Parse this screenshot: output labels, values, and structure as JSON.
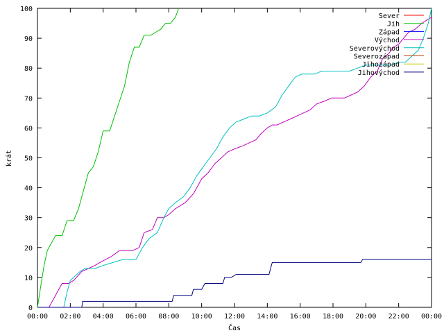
{
  "chart_data": {
    "type": "line",
    "title": "",
    "xlabel": "Čas",
    "ylabel": "krát",
    "xlim": [
      0,
      24
    ],
    "ylim": [
      0,
      100
    ],
    "x_ticks": [
      {
        "value": 0,
        "label": "00:00"
      },
      {
        "value": 2,
        "label": "02:00"
      },
      {
        "value": 4,
        "label": "04:00"
      },
      {
        "value": 6,
        "label": "06:00"
      },
      {
        "value": 8,
        "label": "08:00"
      },
      {
        "value": 10,
        "label": "10:00"
      },
      {
        "value": 12,
        "label": "12:00"
      },
      {
        "value": 14,
        "label": "14:00"
      },
      {
        "value": 16,
        "label": "16:00"
      },
      {
        "value": 18,
        "label": "18:00"
      },
      {
        "value": 20,
        "label": "20:00"
      },
      {
        "value": 22,
        "label": "22:00"
      },
      {
        "value": 24,
        "label": "00:00"
      }
    ],
    "y_ticks": [
      0,
      10,
      20,
      30,
      40,
      50,
      60,
      70,
      80,
      90,
      100
    ],
    "grid": false,
    "legend_position": "top-right",
    "series": [
      {
        "name": "Sever",
        "color": "#ff0000",
        "x": [],
        "y": []
      },
      {
        "name": "Jih",
        "color": "#00c000",
        "x": [
          0,
          0.2,
          0.4,
          0.6,
          0.8,
          1.1,
          1.5,
          1.8,
          2.2,
          2.5,
          2.8,
          3.1,
          3.4,
          3.7,
          4.0,
          4.4,
          4.7,
          5.0,
          5.3,
          5.6,
          5.9,
          6.2,
          6.5,
          6.9,
          7.2,
          7.5,
          7.8,
          8.1,
          8.4,
          8.6
        ],
        "y": [
          0,
          7,
          14,
          19,
          21,
          24,
          24,
          29,
          29,
          33,
          39,
          45,
          47,
          52,
          59,
          59,
          64,
          69,
          74,
          82,
          87,
          87,
          91,
          91,
          92,
          93,
          95,
          95,
          97,
          100
        ]
      },
      {
        "name": "Západ",
        "color": "#0000ff",
        "x": [],
        "y": []
      },
      {
        "name": "Východ",
        "color": "#c000c0",
        "x": [
          0,
          0.7,
          0.9,
          1.0,
          1.2,
          1.5,
          1.9,
          2.2,
          2.7,
          3.1,
          3.5,
          3.8,
          4.5,
          5.0,
          5.8,
          6.2,
          6.5,
          7.0,
          7.3,
          7.7,
          8.0,
          8.4,
          9.0,
          9.5,
          10.0,
          10.4,
          10.8,
          11.2,
          11.6,
          12.0,
          12.5,
          12.9,
          13.3,
          13.6,
          14.0,
          14.3,
          14.6,
          15.0,
          15.4,
          15.8,
          16.2,
          16.6,
          17.0,
          17.5,
          17.9,
          18.3,
          18.7,
          19.1,
          19.5,
          19.9,
          20.3,
          20.7,
          21.0,
          21.4,
          21.7,
          22.0,
          22.3,
          22.6,
          23.0,
          23.4,
          23.7,
          24.0
        ],
        "y": [
          0,
          0,
          2,
          3,
          5,
          8,
          8,
          9,
          12,
          13,
          14,
          15,
          17,
          19,
          19,
          20,
          25,
          26,
          30,
          30,
          31,
          33,
          35,
          38,
          43,
          45,
          48,
          50,
          52,
          53,
          54,
          55,
          56,
          58,
          60,
          61,
          61,
          62,
          63,
          64,
          65,
          66,
          68,
          69,
          70,
          70,
          70,
          71,
          72,
          74,
          77,
          79,
          83,
          85,
          87,
          88,
          90,
          92,
          93,
          95,
          96,
          97
        ]
      },
      {
        "name": "Severovýchod",
        "color": "#00c0c0",
        "x": [
          0,
          1.6,
          1.8,
          2.0,
          2.2,
          2.6,
          2.9,
          3.5,
          4.0,
          4.6,
          5.2,
          6.0,
          6.4,
          6.8,
          7.3,
          7.7,
          8.0,
          8.4,
          8.9,
          9.3,
          9.7,
          10.1,
          10.5,
          10.9,
          11.3,
          11.7,
          12.1,
          12.6,
          13.0,
          13.5,
          14.0,
          14.5,
          14.9,
          15.3,
          15.7,
          16.1,
          16.5,
          16.9,
          17.3,
          17.7,
          18.1,
          18.6,
          19.0,
          19.5,
          20.0,
          20.5,
          21.0,
          21.5,
          22.0,
          22.4,
          22.8,
          23.2,
          23.5,
          23.8,
          24.0
        ],
        "y": [
          0,
          0,
          5,
          9,
          10,
          12,
          13,
          13,
          14,
          15,
          16,
          16,
          20,
          23,
          25,
          30,
          33,
          35,
          37,
          40,
          44,
          47,
          50,
          53,
          57,
          60,
          62,
          63,
          64,
          64,
          65,
          67,
          71,
          74,
          77,
          78,
          78,
          78,
          79,
          79,
          79,
          79,
          79,
          80,
          81,
          81,
          81,
          81,
          82,
          82,
          84,
          86,
          90,
          95,
          100
        ]
      },
      {
        "name": "Severozápad",
        "color": "#c04000",
        "x": [],
        "y": []
      },
      {
        "name": "Jihozápad",
        "color": "#c8c800",
        "x": [],
        "y": []
      },
      {
        "name": "Jihovýchod",
        "color": "#000080",
        "x": [
          0,
          2.7,
          2.75,
          8.2,
          8.3,
          9.4,
          9.5,
          10.0,
          10.2,
          11.3,
          11.4,
          11.8,
          12.1,
          14.1,
          14.3,
          19.7,
          19.8,
          24.0
        ],
        "y": [
          0,
          0,
          2,
          2,
          4,
          4,
          6,
          6,
          8,
          8,
          10,
          10,
          11,
          11,
          15,
          15,
          16,
          16
        ]
      }
    ]
  }
}
